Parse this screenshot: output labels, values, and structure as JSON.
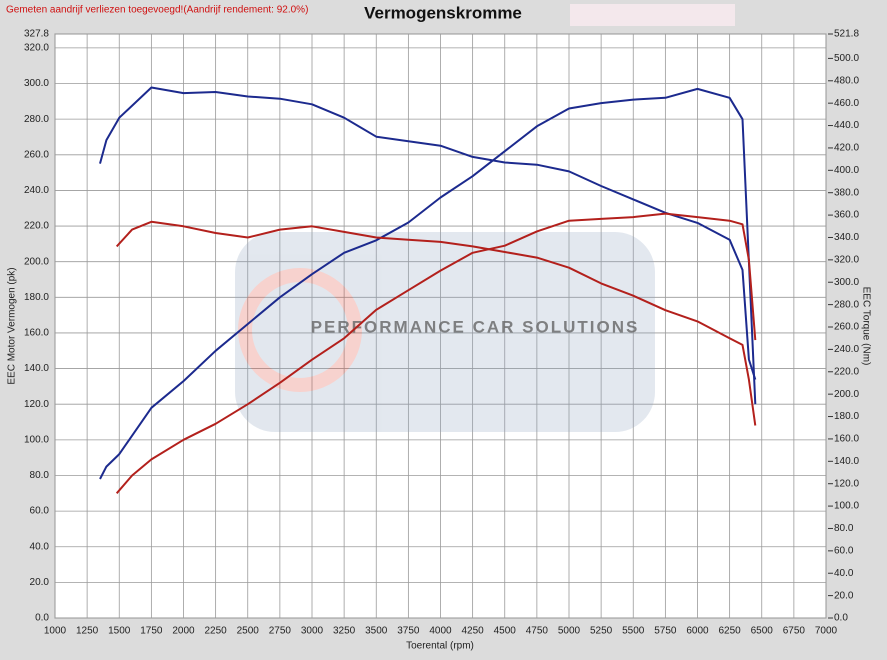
{
  "chart_data": {
    "type": "line",
    "header_note": "Gemeten aandrijf verliezen toegevoegd!(Aandrijf rendement: 92.0%)",
    "title": "Vermogenskromme",
    "watermark": "PERFORMANCE CAR SOLUTIONS",
    "x_label": "Toerental (rpm)",
    "y_label": "EEC Motor Vermogen (pk)",
    "y2_label": "EEC Torque (Nm)",
    "xlim": [
      1000,
      7000
    ],
    "xticks": [
      1000,
      1250,
      1500,
      1750,
      2000,
      2250,
      2500,
      2750,
      3000,
      3250,
      3500,
      3750,
      4000,
      4250,
      4500,
      4750,
      5000,
      5250,
      5500,
      5750,
      6000,
      6250,
      6500,
      6750,
      7000
    ],
    "ylim": [
      0,
      327.8
    ],
    "yticks": [
      {
        "value": 0,
        "label": "0.0"
      },
      {
        "value": 20,
        "label": "20.0"
      },
      {
        "value": 40,
        "label": "40.0"
      },
      {
        "value": 60,
        "label": "60.0"
      },
      {
        "value": 80,
        "label": "80.0"
      },
      {
        "value": 100,
        "label": "100.0"
      },
      {
        "value": 120,
        "label": "120.0"
      },
      {
        "value": 140,
        "label": "140.0"
      },
      {
        "value": 160,
        "label": "160.0"
      },
      {
        "value": 180,
        "label": "180.0"
      },
      {
        "value": 200,
        "label": "200.0"
      },
      {
        "value": 220,
        "label": "220.0"
      },
      {
        "value": 240,
        "label": "240.0"
      },
      {
        "value": 260,
        "label": "260.0"
      },
      {
        "value": 280,
        "label": "280.0"
      },
      {
        "value": 300,
        "label": "300.0"
      },
      {
        "value": 320,
        "label": "320.0"
      },
      327.8
    ],
    "y2lim": [
      0,
      521.8
    ],
    "y2ticks": [
      {
        "value": 0,
        "label": "0.0"
      },
      {
        "value": 20,
        "label": "20.0"
      },
      {
        "value": 40,
        "label": "40.0"
      },
      {
        "value": 60,
        "label": "60.0"
      },
      {
        "value": 80,
        "label": "80.0"
      },
      {
        "value": 100,
        "label": "100.0"
      },
      {
        "value": 120,
        "label": "120.0"
      },
      {
        "value": 140,
        "label": "140.0"
      },
      {
        "value": 160,
        "label": "160.0"
      },
      {
        "value": 180,
        "label": "180.0"
      },
      {
        "value": 200,
        "label": "200.0"
      },
      {
        "value": 220,
        "label": "220.0"
      },
      {
        "value": 240,
        "label": "240.0"
      },
      {
        "value": 260,
        "label": "260.0"
      },
      {
        "value": 280,
        "label": "280.0"
      },
      {
        "value": 300,
        "label": "300.0"
      },
      {
        "value": 320,
        "label": "320.0"
      },
      {
        "value": 340,
        "label": "340.0"
      },
      {
        "value": 360,
        "label": "360.0"
      },
      {
        "value": 380,
        "label": "380.0"
      },
      {
        "value": 400,
        "label": "400.0"
      },
      {
        "value": 420,
        "label": "420.0"
      },
      {
        "value": 440,
        "label": "440.0"
      },
      {
        "value": 460,
        "label": "460.0"
      },
      {
        "value": 480,
        "label": "480.0"
      },
      {
        "value": 500,
        "label": "500.0"
      },
      521.8
    ],
    "grid": true,
    "series": [
      {
        "color": "#1c2a8e",
        "axis": "y",
        "x": [
          1350,
          1400,
          1500,
          1750,
          2000,
          2250,
          2500,
          2750,
          3000,
          3250,
          3500,
          3750,
          4000,
          4250,
          4500,
          4750,
          5000,
          5250,
          5500,
          5750,
          6000,
          6250,
          6350,
          6400,
          6450
        ],
        "values": [
          78,
          85,
          92,
          118,
          133,
          150,
          165,
          180,
          193,
          205,
          212,
          222,
          236,
          248,
          262,
          276,
          286,
          289,
          291,
          292,
          297,
          292,
          280,
          200,
          120
        ]
      },
      {
        "color": "#1c2a8e",
        "axis": "y2",
        "x": [
          1350,
          1400,
          1500,
          1750,
          2000,
          2250,
          2500,
          2750,
          3000,
          3250,
          3500,
          3750,
          4000,
          4250,
          4500,
          4750,
          5000,
          5250,
          5500,
          5750,
          6000,
          6250,
          6350,
          6400,
          6450
        ],
        "values": [
          406,
          427,
          447,
          474,
          469,
          470,
          466,
          464,
          459,
          447,
          430,
          426,
          422,
          412,
          407,
          405,
          399,
          386,
          374,
          362,
          353,
          338,
          311,
          231,
          213
        ]
      },
      {
        "color": "#b3201c",
        "axis": "y",
        "x": [
          1480,
          1600,
          1750,
          2000,
          2250,
          2500,
          2750,
          3000,
          3250,
          3500,
          3750,
          4000,
          4250,
          4500,
          4750,
          5000,
          5250,
          5500,
          5750,
          6000,
          6250,
          6350,
          6400,
          6450
        ],
        "values": [
          70,
          80,
          89,
          100,
          109,
          120,
          132,
          145,
          157,
          173,
          184,
          195,
          205,
          209,
          217,
          223,
          224,
          225,
          227,
          225,
          223,
          221,
          201,
          156
        ]
      },
      {
        "color": "#b3201c",
        "axis": "y2",
        "x": [
          1480,
          1600,
          1750,
          2000,
          2250,
          2500,
          2750,
          3000,
          3250,
          3500,
          3750,
          4000,
          4250,
          4500,
          4750,
          5000,
          5250,
          5500,
          5750,
          6000,
          6250,
          6350,
          6400,
          6450
        ],
        "values": [
          332,
          347,
          354,
          350,
          344,
          340,
          347,
          350,
          345,
          340,
          338,
          336,
          332,
          327,
          322,
          313,
          299,
          288,
          275,
          265,
          250,
          244,
          213,
          172
        ]
      }
    ]
  }
}
